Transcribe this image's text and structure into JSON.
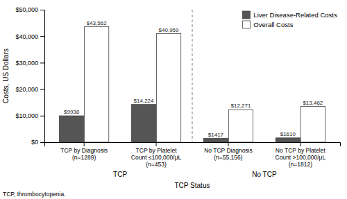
{
  "chart_data": {
    "type": "bar",
    "categories": [
      "TCP by Diagnosis\n(n=1289)",
      "TCP by Platelet\nCount ≤100,000/μL\n(n=453)",
      "No TCP Diagnosis\n(n=55,156)",
      "No TCP by Platelet\nCount >100,000/μL\n(n=1812)"
    ],
    "series": [
      {
        "name": "Liver Disease-Related Costs",
        "color": "#555555",
        "values": [
          9938,
          14224,
          1417,
          1610
        ],
        "value_labels": [
          "$9938",
          "$14,224",
          "$1417",
          "$1610"
        ]
      },
      {
        "name": "Overall Costs",
        "color": "#ffffff",
        "values": [
          43562,
          40959,
          12271,
          13462
        ],
        "value_labels": [
          "$43,562",
          "$40,959",
          "$12,271",
          "$13,462"
        ]
      }
    ],
    "xlabel": "TCP Status",
    "ylabel": "Costs, US Dollars",
    "ylim": [
      0,
      50000
    ],
    "yticks": [
      {
        "value": 0,
        "label": "$0"
      },
      {
        "value": 10000,
        "label": "$10,000"
      },
      {
        "value": 20000,
        "label": "$20,000"
      },
      {
        "value": 30000,
        "label": "$30,000"
      },
      {
        "value": 40000,
        "label": "$40,000"
      },
      {
        "value": 50000,
        "label": "$50,000"
      }
    ],
    "annotations": [
      "TCP",
      "No TCP"
    ],
    "footnote": "TCP, thrombocytopenia.",
    "data_labels": true,
    "legend": "upper right",
    "grid": false
  }
}
